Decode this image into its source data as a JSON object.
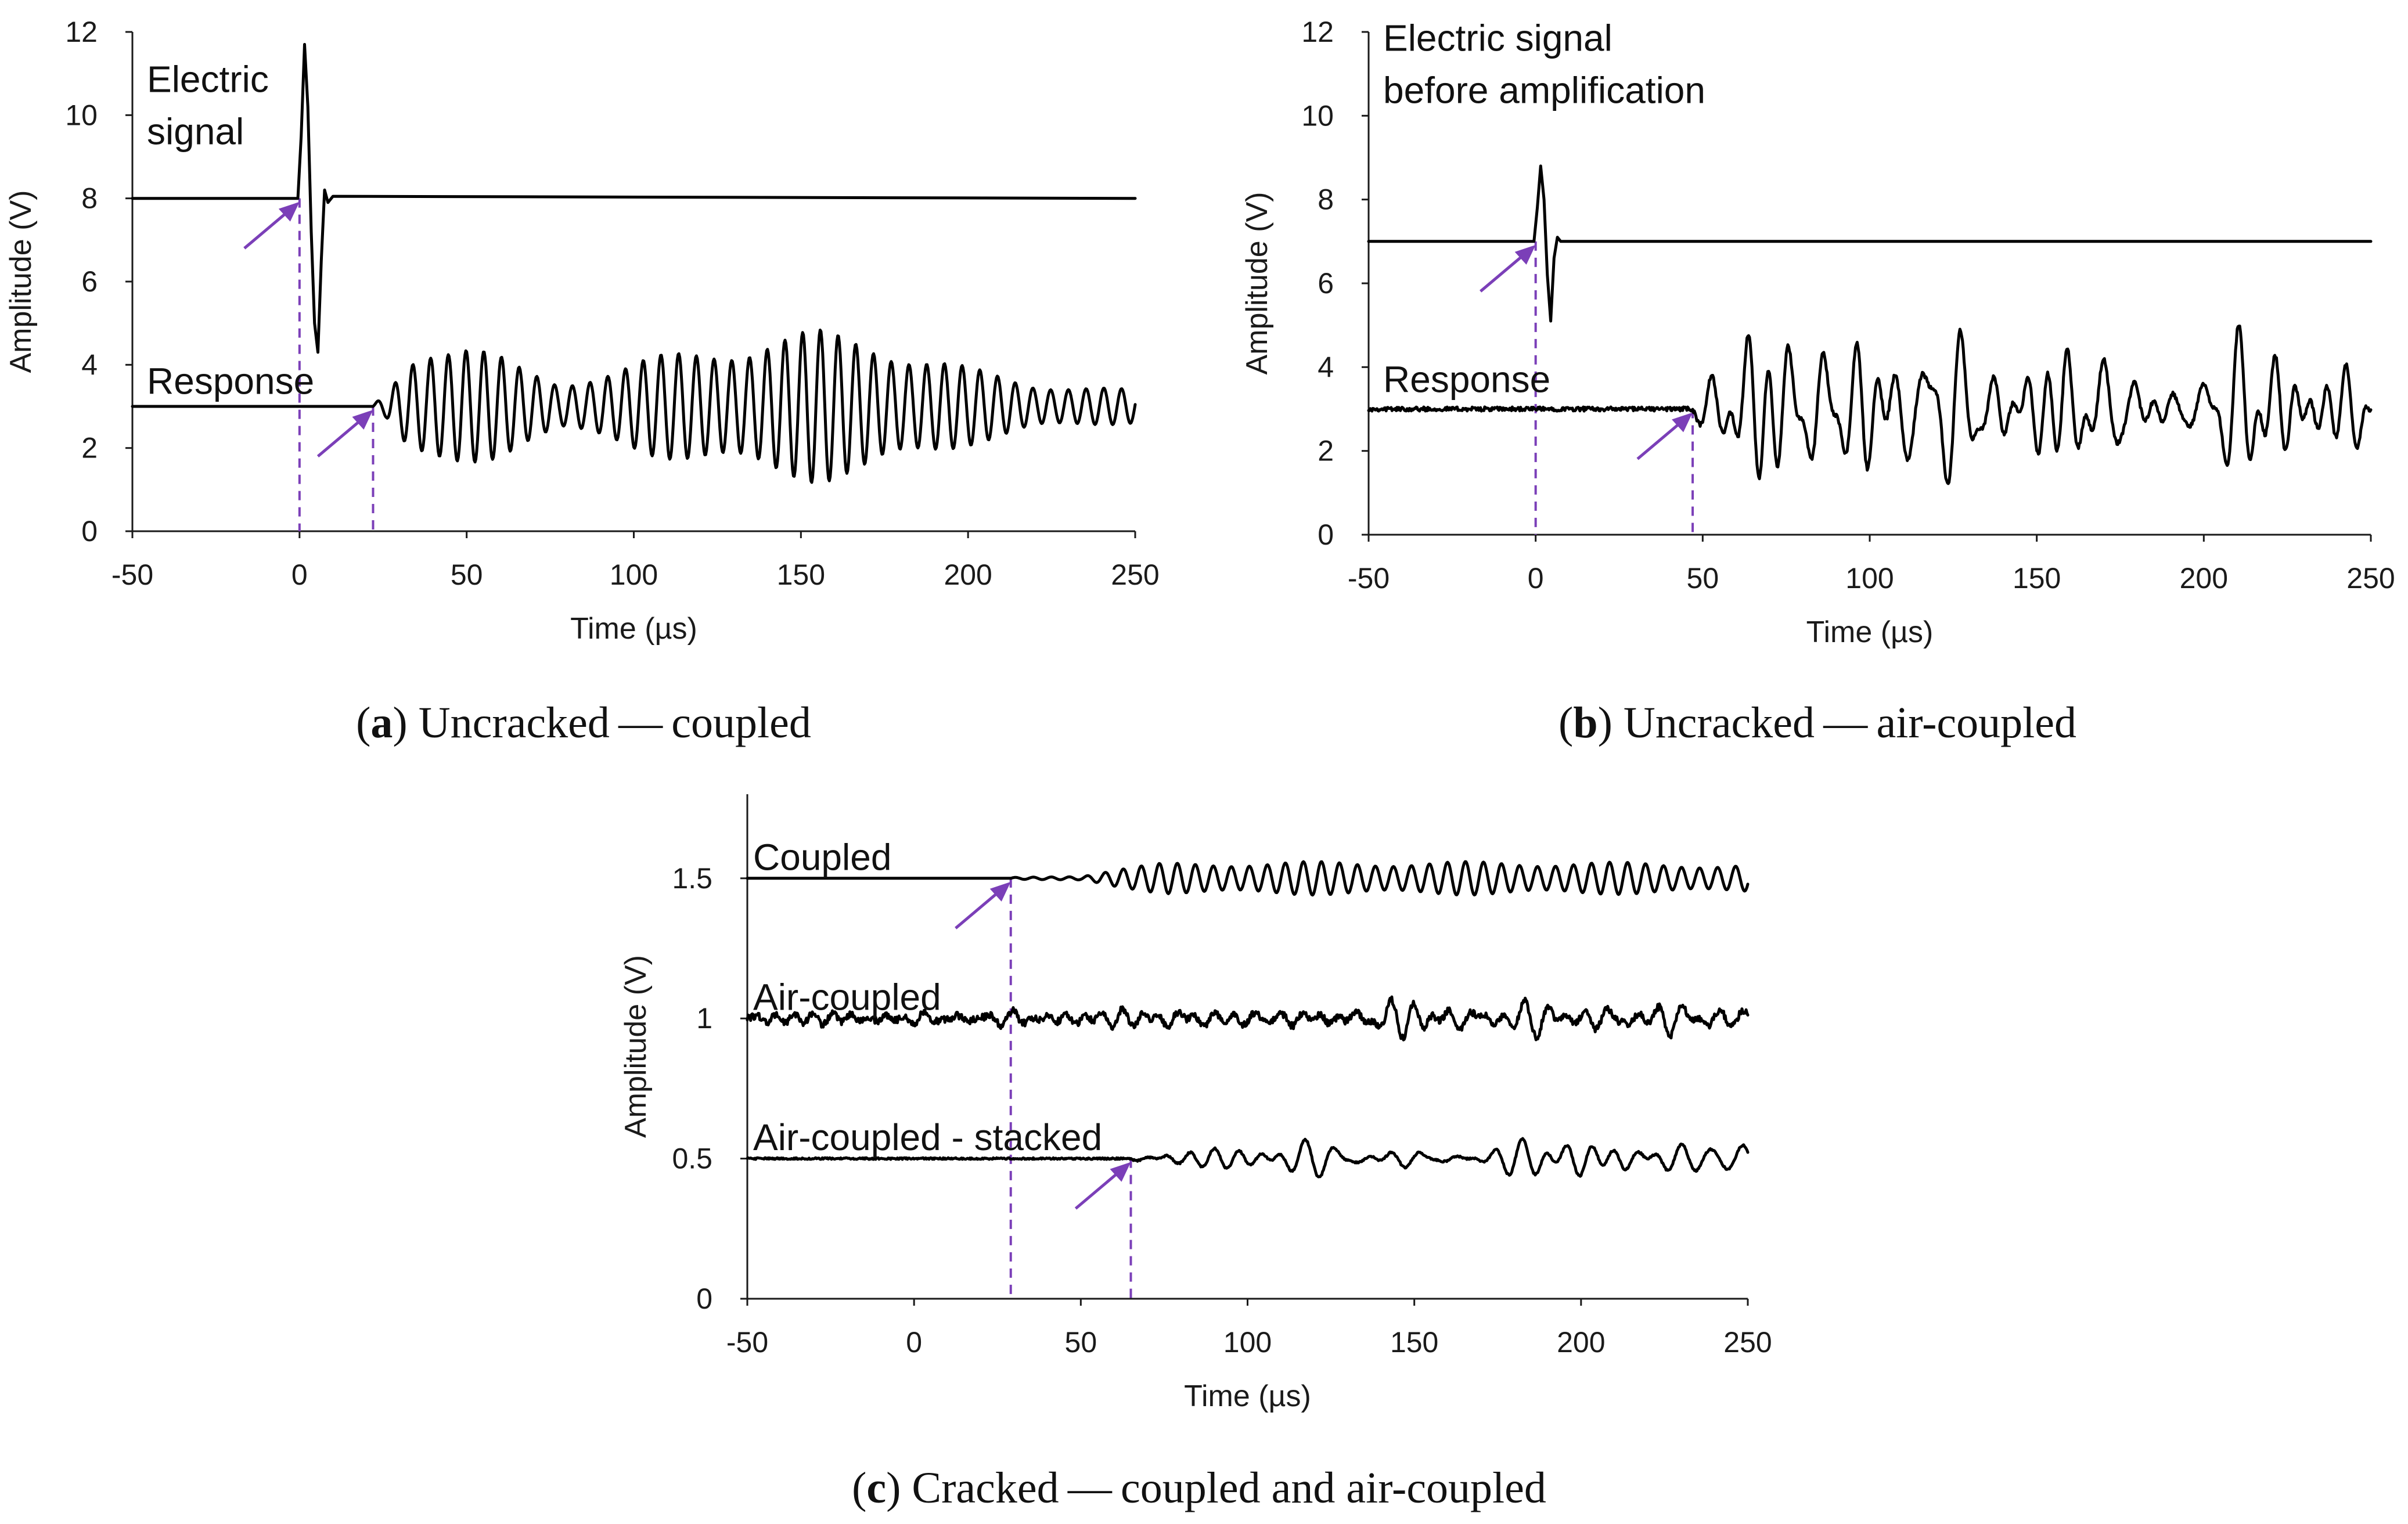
{
  "figure": {
    "colors": {
      "trace": "#000000",
      "marker": "#7b3fb8",
      "axis": "#1a1a1a"
    }
  },
  "chart_data": [
    {
      "type": "line",
      "panel": "a",
      "caption": {
        "letter": "a",
        "text": "Uncracked — coupled"
      },
      "xlabel": "Time (µs)",
      "ylabel": "Amplitude (V)",
      "xlim": [
        -50,
        250
      ],
      "ylim": [
        0,
        12
      ],
      "xticks": [
        -50,
        0,
        50,
        100,
        150,
        200,
        250
      ],
      "yticks": [
        0,
        2,
        4,
        6,
        8,
        10,
        12
      ],
      "series": [
        {
          "name": "Electric signal",
          "label_lines": [
            "Electric",
            "signal"
          ],
          "kind": "pulse",
          "baseline": 8,
          "points": [
            [
              -50,
              8
            ],
            [
              -0.5,
              8
            ],
            [
              0.5,
              9.5
            ],
            [
              1.5,
              11.7
            ],
            [
              2.5,
              10.2
            ],
            [
              3.5,
              7.2
            ],
            [
              4.5,
              5.0
            ],
            [
              5.5,
              4.3
            ],
            [
              6.5,
              6.5
            ],
            [
              7.5,
              8.2
            ],
            [
              8.5,
              7.9
            ],
            [
              10,
              8.05
            ],
            [
              250,
              8.0
            ]
          ],
          "onset": 0
        },
        {
          "name": "Response",
          "label_lines": [
            "Response"
          ],
          "kind": "burst",
          "baseline": 3,
          "onset": 22,
          "period": 5.3,
          "envelope": [
            [
              22,
              0.05
            ],
            [
              26,
              0.3
            ],
            [
              33,
              1.3
            ],
            [
              40,
              1.7
            ],
            [
              48,
              1.7
            ],
            [
              57,
              1.35
            ],
            [
              67,
              0.9
            ],
            [
              78,
              0.6
            ],
            [
              92,
              0.95
            ],
            [
              105,
              1.2
            ],
            [
              120,
              1.4
            ],
            [
              140,
              1.75
            ],
            [
              155,
              1.85
            ],
            [
              170,
              1.75
            ],
            [
              185,
              1.3
            ],
            [
              200,
              0.95
            ],
            [
              220,
              0.6
            ],
            [
              250,
              0.4
            ]
          ]
        }
      ],
      "markers": [
        0,
        22
      ]
    },
    {
      "type": "line",
      "panel": "b",
      "caption": {
        "letter": "b",
        "text": "Uncracked — air-coupled"
      },
      "xlabel": "Time (µs)",
      "ylabel": "Amplitude (V)",
      "xlim": [
        -50,
        250
      ],
      "ylim": [
        0,
        12
      ],
      "xticks": [
        -50,
        0,
        50,
        100,
        150,
        200,
        250
      ],
      "yticks": [
        0,
        2,
        4,
        6,
        8,
        10,
        12
      ],
      "series": [
        {
          "name": "Electric signal before amplification",
          "label_lines": [
            "Electric signal",
            "before amplification"
          ],
          "kind": "pulse",
          "baseline": 7,
          "points": [
            [
              -50,
              7
            ],
            [
              -0.5,
              7
            ],
            [
              0.5,
              7.8
            ],
            [
              1.5,
              8.8
            ],
            [
              2.5,
              8.0
            ],
            [
              3.5,
              6.2
            ],
            [
              4.5,
              5.1
            ],
            [
              5.5,
              6.6
            ],
            [
              6.5,
              7.1
            ],
            [
              7.5,
              7.0
            ],
            [
              250,
              7.0
            ]
          ],
          "onset": 0
        },
        {
          "name": "Response",
          "label_lines": [
            "Response"
          ],
          "kind": "noisy",
          "baseline": 3,
          "onset": 47,
          "envelope": [
            [
              47,
              0.1
            ],
            [
              52,
              1.2
            ],
            [
              60,
              1.8
            ],
            [
              68,
              2.0
            ],
            [
              80,
              1.6
            ],
            [
              100,
              1.8
            ],
            [
              120,
              1.7
            ],
            [
              140,
              1.3
            ],
            [
              160,
              1.3
            ],
            [
              180,
              1.2
            ],
            [
              200,
              1.1
            ],
            [
              230,
              1.5
            ],
            [
              250,
              1.1
            ]
          ],
          "noise": 0.05
        }
      ],
      "markers": [
        0,
        47
      ]
    },
    {
      "type": "line",
      "panel": "c",
      "caption": {
        "letter": "c",
        "text": "Cracked — coupled and air-coupled"
      },
      "xlabel": "Time (µs)",
      "ylabel": "Amplitude (V)",
      "xlim": [
        -50,
        250
      ],
      "ylim": [
        0,
        1.8
      ],
      "xticks": [
        -50,
        0,
        50,
        100,
        150,
        200,
        250
      ],
      "yticks": [
        0,
        0.5,
        1,
        1.5
      ],
      "ytick_labels": [
        "0",
        "0.5",
        "1",
        "1.5"
      ],
      "series": [
        {
          "name": "Coupled",
          "label_lines": [
            "Coupled"
          ],
          "kind": "burst",
          "baseline": 1.5,
          "onset": 29,
          "period": 5.4,
          "envelope": [
            [
              29,
              0.003
            ],
            [
              50,
              0.008
            ],
            [
              60,
              0.035
            ],
            [
              75,
              0.055
            ],
            [
              100,
              0.06
            ],
            [
              150,
              0.06
            ],
            [
              200,
              0.06
            ],
            [
              250,
              0.05
            ]
          ]
        },
        {
          "name": "Air-coupled",
          "label_lines": [
            "Air-coupled"
          ],
          "kind": "noisy",
          "baseline": 1.0,
          "onset": -50,
          "envelope": [
            [
              -50,
              0.02
            ],
            [
              50,
              0.025
            ],
            [
              100,
              0.045
            ],
            [
              150,
              0.07
            ],
            [
              200,
              0.08
            ],
            [
              250,
              0.07
            ]
          ],
          "noise": 0.012
        },
        {
          "name": "Air-coupled - stacked",
          "label_lines": [
            "Air-coupled - stacked"
          ],
          "kind": "noisy",
          "baseline": 0.5,
          "onset": 65,
          "envelope": [
            [
              65,
              0.01
            ],
            [
              75,
              0.035
            ],
            [
              100,
              0.045
            ],
            [
              150,
              0.06
            ],
            [
              200,
              0.065
            ],
            [
              250,
              0.05
            ]
          ],
          "noise": 0.003
        }
      ],
      "markers": [
        29,
        65
      ]
    }
  ]
}
